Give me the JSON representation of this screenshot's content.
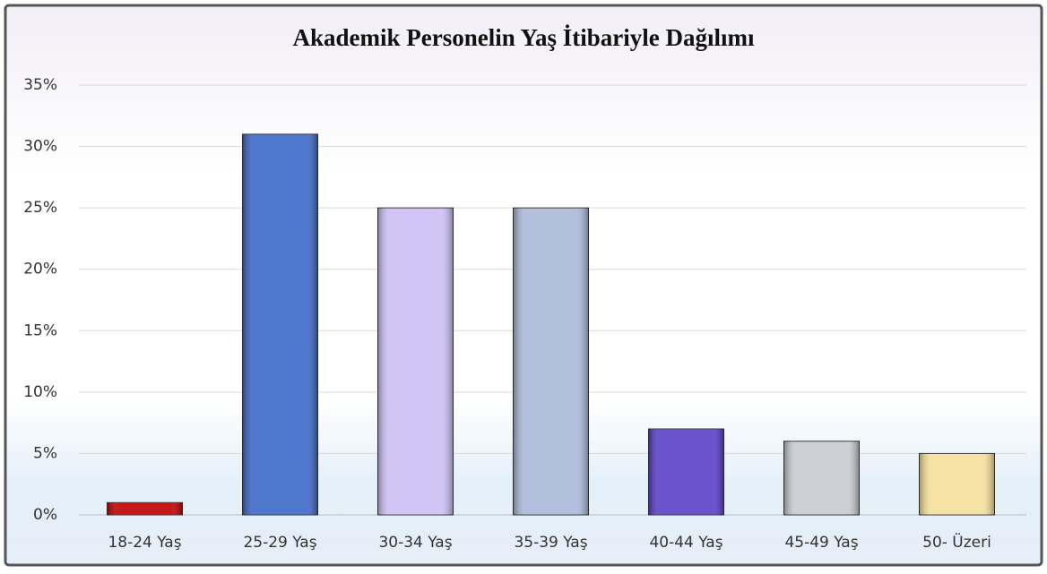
{
  "chart_data": {
    "type": "bar",
    "title": "Akademik Personelin Yaş İtibariyle Dağılımı",
    "categories": [
      "18-24 Yaş",
      "25-29 Yaş",
      "30-34 Yaş",
      "35-39 Yaş",
      "40-44 Yaş",
      "45-49 Yaş",
      "50- Üzeri"
    ],
    "values": [
      1,
      31,
      25,
      25,
      7,
      6,
      5
    ],
    "colors": [
      "#c00000",
      "#3c68c8",
      "#cbbff4",
      "#a9b9d9",
      "#5b40c9",
      "#c6cacf",
      "#f6df9b"
    ],
    "ylim": [
      0,
      35
    ],
    "yticks": [
      {
        "value": 0,
        "label": "0%"
      },
      {
        "value": 5,
        "label": "5%"
      },
      {
        "value": 10,
        "label": "10%"
      },
      {
        "value": 15,
        "label": "15%"
      },
      {
        "value": 20,
        "label": "20%"
      },
      {
        "value": 25,
        "label": "25%"
      },
      {
        "value": 30,
        "label": "30%"
      },
      {
        "value": 35,
        "label": "35%"
      }
    ],
    "grid": true
  }
}
